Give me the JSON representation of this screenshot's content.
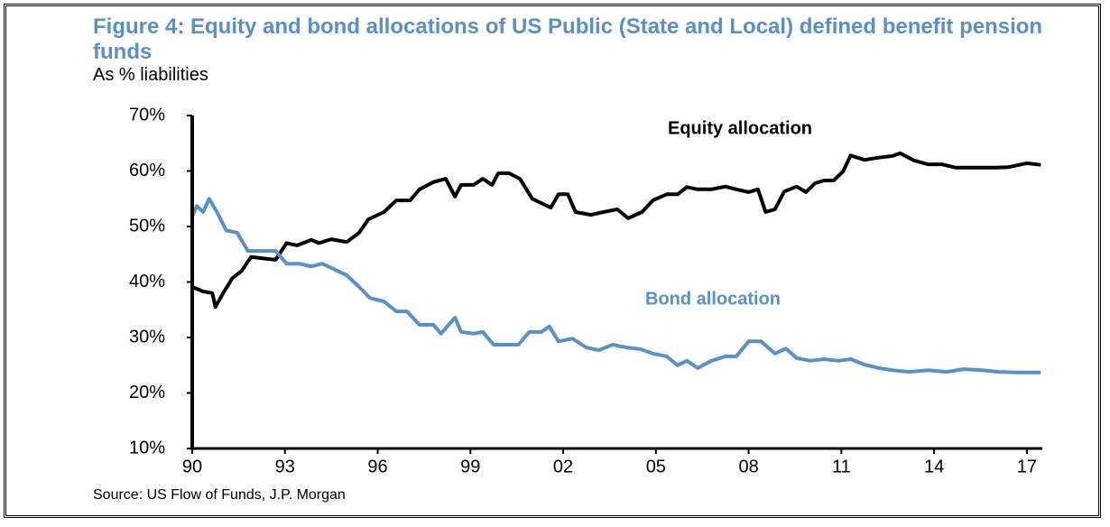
{
  "chart_data": {
    "type": "line",
    "title": "Figure 4: Equity and bond allocations of US Public (State and Local) defined benefit pension funds",
    "subtitle": "As % liabilities",
    "source": "Source: US Flow of Funds, J.P. Morgan",
    "xlim": [
      1990,
      2017.5
    ],
    "xticks": [
      {
        "value": 1990,
        "label": "90"
      },
      {
        "value": 1993,
        "label": "93"
      },
      {
        "value": 1996,
        "label": "96"
      },
      {
        "value": 1999,
        "label": "99"
      },
      {
        "value": 2002,
        "label": "02"
      },
      {
        "value": 2005,
        "label": "05"
      },
      {
        "value": 2008,
        "label": "08"
      },
      {
        "value": 2011,
        "label": "11"
      },
      {
        "value": 2014,
        "label": "14"
      },
      {
        "value": 2017,
        "label": "17"
      }
    ],
    "ylim": [
      10,
      70
    ],
    "yticks": [
      {
        "value": 10,
        "label": "10%"
      },
      {
        "value": 20,
        "label": "20%"
      },
      {
        "value": 30,
        "label": "30%"
      },
      {
        "value": 40,
        "label": "40%"
      },
      {
        "value": 50,
        "label": "50%"
      },
      {
        "value": 60,
        "label": "60%"
      },
      {
        "value": 70,
        "label": "70%"
      }
    ],
    "series": [
      {
        "name": "Equity allocation",
        "color": "#000000",
        "x": [
          1990,
          1990.35,
          1990.65,
          1990.75,
          1991,
          1991.3,
          1991.6,
          1991.9,
          1992.4,
          1992.7,
          1993.05,
          1993.4,
          1993.85,
          1994.1,
          1994.5,
          1995,
          1995.4,
          1995.7,
          1996.2,
          1996.6,
          1997.05,
          1997.35,
          1997.8,
          1998.2,
          1998.5,
          1998.7,
          1999.1,
          1999.4,
          1999.7,
          1999.9,
          2000.25,
          2000.6,
          2001,
          2001.3,
          2001.6,
          2001.85,
          2002.15,
          2002.4,
          2002.9,
          2003.3,
          2003.75,
          2004.1,
          2004.55,
          2004.9,
          2005.35,
          2005.7,
          2006,
          2006.35,
          2006.8,
          2007.25,
          2007.6,
          2008,
          2008.3,
          2008.55,
          2008.85,
          2009.15,
          2009.55,
          2009.85,
          2010.15,
          2010.45,
          2010.75,
          2011.05,
          2011.3,
          2011.75,
          2012.2,
          2012.65,
          2012.9,
          2013.35,
          2013.8,
          2014.25,
          2014.7,
          2015.1,
          2015.55,
          2016,
          2016.4,
          2017,
          2017.45
        ],
        "values": [
          39.1,
          38.3,
          38,
          35.5,
          38,
          40.7,
          42,
          44.5,
          44.2,
          44,
          47,
          46.6,
          47.6,
          47,
          47.7,
          47.2,
          48.9,
          51.3,
          52.6,
          54.7,
          54.7,
          56.7,
          58,
          58.6,
          55.4,
          57.5,
          57.5,
          58.6,
          57.5,
          59.6,
          59.6,
          58.6,
          55,
          54.2,
          53.4,
          55.8,
          55.8,
          52.6,
          52.1,
          52.6,
          53.1,
          51.5,
          52.6,
          54.7,
          55.8,
          55.8,
          57.1,
          56.7,
          56.7,
          57.2,
          56.7,
          56.2,
          56.7,
          52.6,
          53.1,
          56.3,
          57.2,
          56.2,
          57.8,
          58.3,
          58.3,
          59.9,
          62.8,
          62,
          62.4,
          62.7,
          63.2,
          61.9,
          61.2,
          61.2,
          60.6,
          60.6,
          60.6,
          60.6,
          60.7,
          61.4,
          61.1
        ]
      },
      {
        "name": "Bond allocation",
        "color": "#5b8fc7",
        "x": [
          1990,
          1990.15,
          1990.35,
          1990.55,
          1990.8,
          1991.1,
          1991.45,
          1991.8,
          1992.25,
          1992.7,
          1993.05,
          1993.45,
          1993.85,
          1994.2,
          1994.55,
          1995,
          1995.4,
          1995.75,
          1996.2,
          1996.6,
          1996.95,
          1997.35,
          1997.8,
          1998.05,
          1998.5,
          1998.7,
          1999.1,
          1999.4,
          1999.75,
          2000.1,
          2000.55,
          2000.9,
          2001.3,
          2001.55,
          2001.85,
          2002.3,
          2002.75,
          2003.15,
          2003.6,
          2004.05,
          2004.5,
          2004.9,
          2005.35,
          2005.7,
          2006,
          2006.35,
          2006.8,
          2007.25,
          2007.6,
          2008,
          2008.4,
          2008.85,
          2009.2,
          2009.55,
          2010,
          2010.45,
          2010.9,
          2011.3,
          2011.75,
          2012.2,
          2012.65,
          2013.2,
          2013.8,
          2014.4,
          2014.95,
          2015.55,
          2016.1,
          2016.7,
          2017.45
        ],
        "values": [
          51.8,
          53.7,
          52.6,
          55,
          52.6,
          49.3,
          48.9,
          45.6,
          45.6,
          45.6,
          43.3,
          43.3,
          42.8,
          43.3,
          42.4,
          41.2,
          39.1,
          37.1,
          36.5,
          34.7,
          34.7,
          32.3,
          32.3,
          30.7,
          33.6,
          31,
          30.7,
          31,
          28.7,
          28.7,
          28.7,
          31,
          31,
          32,
          29.3,
          29.8,
          28.2,
          27.7,
          28.7,
          28.2,
          27.9,
          27.1,
          26.6,
          25,
          25.8,
          24.5,
          25.8,
          26.6,
          26.6,
          29.3,
          29.3,
          27.1,
          28,
          26.3,
          25.8,
          26.1,
          25.8,
          26.1,
          25.1,
          24.5,
          24.1,
          23.8,
          24.1,
          23.8,
          24.3,
          24.1,
          23.8,
          23.7,
          23.7
        ]
      }
    ]
  }
}
